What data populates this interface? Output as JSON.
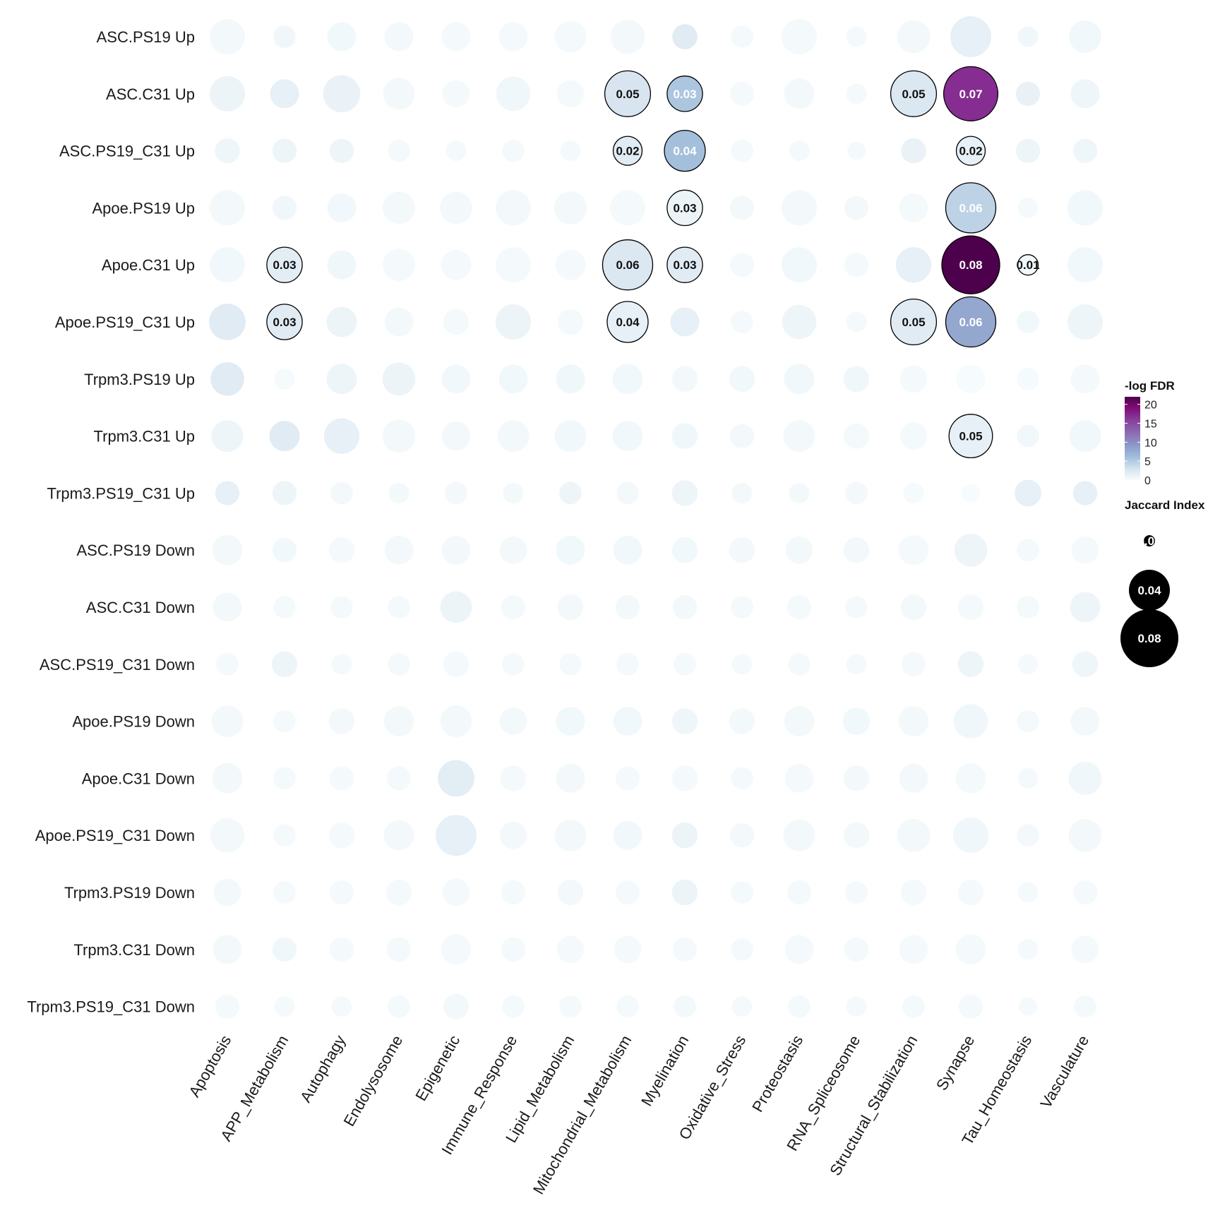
{
  "chart_data": {
    "type": "bubble-matrix",
    "rows": [
      "ASC.PS19 Up",
      "ASC.C31 Up",
      "ASC.PS19_C31 Up",
      "Apoe.PS19 Up",
      "Apoe.C31 Up",
      "Apoe.PS19_C31 Up",
      "Trpm3.PS19 Up",
      "Trpm3.C31 Up",
      "Trpm3.PS19_C31 Up",
      "ASC.PS19 Down",
      "ASC.C31 Down",
      "ASC.PS19_C31 Down",
      "Apoe.PS19 Down",
      "Apoe.C31 Down",
      "Apoe.PS19_C31 Down",
      "Trpm3.PS19 Down",
      "Trpm3.C31 Down",
      "Trpm3.PS19_C31 Down"
    ],
    "columns": [
      "Apoptosis",
      "APP_Metabolism",
      "Autophagy",
      "Endolysosome",
      "Epigenetic",
      "Immune_Response",
      "Lipid_Metabolism",
      "Mitochondrial_Metabolism",
      "Myelination",
      "Oxidative_Stress",
      "Proteostasis",
      "RNA_Spliceosome",
      "Structural_Stabilization",
      "Synapse",
      "Tau_Homeostasis",
      "Vasculature"
    ],
    "jaccard": [
      [
        0.03,
        0.012,
        0.02,
        0.02,
        0.02,
        0.02,
        0.024,
        0.028,
        0.015,
        0.012,
        0.03,
        0.01,
        0.026,
        0.04,
        0.01,
        0.025
      ],
      [
        0.03,
        0.02,
        0.033,
        0.024,
        0.018,
        0.028,
        0.018,
        0.05,
        0.03,
        0.014,
        0.022,
        0.01,
        0.05,
        0.07,
        0.014,
        0.02
      ],
      [
        0.015,
        0.014,
        0.014,
        0.012,
        0.01,
        0.012,
        0.01,
        0.02,
        0.04,
        0.012,
        0.01,
        0.008,
        0.015,
        0.02,
        0.014,
        0.014
      ],
      [
        0.03,
        0.014,
        0.02,
        0.025,
        0.025,
        0.03,
        0.026,
        0.03,
        0.03,
        0.014,
        0.03,
        0.014,
        0.02,
        0.06,
        0.01,
        0.03
      ],
      [
        0.03,
        0.03,
        0.02,
        0.025,
        0.022,
        0.03,
        0.022,
        0.06,
        0.03,
        0.014,
        0.03,
        0.014,
        0.03,
        0.08,
        0.01,
        0.03
      ],
      [
        0.032,
        0.03,
        0.022,
        0.02,
        0.016,
        0.03,
        0.016,
        0.04,
        0.02,
        0.012,
        0.028,
        0.01,
        0.05,
        0.06,
        0.012,
        0.03
      ],
      [
        0.027,
        0.01,
        0.022,
        0.026,
        0.02,
        0.02,
        0.02,
        0.022,
        0.016,
        0.016,
        0.022,
        0.016,
        0.018,
        0.02,
        0.012,
        0.02
      ],
      [
        0.024,
        0.022,
        0.03,
        0.026,
        0.02,
        0.024,
        0.024,
        0.022,
        0.016,
        0.014,
        0.024,
        0.016,
        0.018,
        0.045,
        0.012,
        0.024
      ],
      [
        0.014,
        0.014,
        0.012,
        0.01,
        0.012,
        0.01,
        0.012,
        0.012,
        0.016,
        0.01,
        0.01,
        0.012,
        0.01,
        0.008,
        0.017,
        0.014
      ],
      [
        0.022,
        0.014,
        0.016,
        0.02,
        0.02,
        0.018,
        0.02,
        0.02,
        0.016,
        0.016,
        0.018,
        0.016,
        0.022,
        0.026,
        0.012,
        0.018
      ],
      [
        0.02,
        0.012,
        0.012,
        0.012,
        0.024,
        0.014,
        0.016,
        0.014,
        0.014,
        0.012,
        0.014,
        0.012,
        0.016,
        0.016,
        0.012,
        0.022
      ],
      [
        0.012,
        0.016,
        0.01,
        0.012,
        0.016,
        0.012,
        0.012,
        0.012,
        0.012,
        0.01,
        0.012,
        0.01,
        0.014,
        0.016,
        0.01,
        0.016
      ],
      [
        0.024,
        0.012,
        0.016,
        0.022,
        0.024,
        0.018,
        0.02,
        0.02,
        0.016,
        0.016,
        0.022,
        0.018,
        0.022,
        0.028,
        0.012,
        0.02
      ],
      [
        0.022,
        0.012,
        0.014,
        0.014,
        0.032,
        0.016,
        0.02,
        0.014,
        0.016,
        0.012,
        0.02,
        0.016,
        0.02,
        0.022,
        0.01,
        0.026
      ],
      [
        0.028,
        0.012,
        0.016,
        0.022,
        0.04,
        0.018,
        0.024,
        0.02,
        0.016,
        0.014,
        0.024,
        0.016,
        0.026,
        0.03,
        0.012,
        0.026
      ],
      [
        0.018,
        0.012,
        0.014,
        0.016,
        0.018,
        0.014,
        0.016,
        0.014,
        0.016,
        0.012,
        0.014,
        0.012,
        0.016,
        0.016,
        0.01,
        0.014
      ],
      [
        0.02,
        0.014,
        0.014,
        0.014,
        0.022,
        0.014,
        0.018,
        0.018,
        0.014,
        0.012,
        0.02,
        0.014,
        0.02,
        0.022,
        0.01,
        0.018
      ],
      [
        0.014,
        0.01,
        0.01,
        0.012,
        0.016,
        0.012,
        0.012,
        0.012,
        0.012,
        0.01,
        0.012,
        0.01,
        0.012,
        0.014,
        0.008,
        0.012
      ]
    ],
    "neglogFDR": [
      [
        0.4,
        0.6,
        0.5,
        0.4,
        0.3,
        0.3,
        0.3,
        0.4,
        2.0,
        0.3,
        0.3,
        0.3,
        0.4,
        1.5,
        0.6,
        0.5
      ],
      [
        1.0,
        1.5,
        1.2,
        0.4,
        0.3,
        0.6,
        0.3,
        2.8,
        5.5,
        0.3,
        0.4,
        0.3,
        2.5,
        17.0,
        1.3,
        0.7
      ],
      [
        0.7,
        0.9,
        0.8,
        0.3,
        0.3,
        0.3,
        0.3,
        2.0,
        6.0,
        0.3,
        0.3,
        0.3,
        1.2,
        1.5,
        0.9,
        0.7
      ],
      [
        0.4,
        0.6,
        0.5,
        0.4,
        0.4,
        0.4,
        0.4,
        0.3,
        1.0,
        0.4,
        0.4,
        0.4,
        0.3,
        4.5,
        0.3,
        0.5
      ],
      [
        0.5,
        1.8,
        0.6,
        0.3,
        0.3,
        0.3,
        0.3,
        2.5,
        2.0,
        0.3,
        0.5,
        0.3,
        1.5,
        22.0,
        0.5,
        0.5
      ],
      [
        2.0,
        2.0,
        1.0,
        0.4,
        0.3,
        1.0,
        0.3,
        1.5,
        1.5,
        0.3,
        0.8,
        0.3,
        2.0,
        8.0,
        0.5,
        0.8
      ],
      [
        2.0,
        0.2,
        0.8,
        1.0,
        0.5,
        0.5,
        0.6,
        0.5,
        0.4,
        0.5,
        0.5,
        0.6,
        0.3,
        0.1,
        0.2,
        0.3
      ],
      [
        0.8,
        2.0,
        1.5,
        0.4,
        0.4,
        0.4,
        0.5,
        0.5,
        0.6,
        0.4,
        0.4,
        0.3,
        0.3,
        1.5,
        0.5,
        0.5
      ],
      [
        1.5,
        0.8,
        0.4,
        0.4,
        0.4,
        0.4,
        0.8,
        0.4,
        0.9,
        0.4,
        0.4,
        0.4,
        0.2,
        0.1,
        1.5,
        1.5
      ],
      [
        0.4,
        0.5,
        0.3,
        0.4,
        0.4,
        0.4,
        0.5,
        0.5,
        0.5,
        0.4,
        0.4,
        0.4,
        0.3,
        0.8,
        0.3,
        0.3
      ],
      [
        0.4,
        0.3,
        0.3,
        0.3,
        1.0,
        0.3,
        0.4,
        0.4,
        0.4,
        0.3,
        0.3,
        0.3,
        0.4,
        0.3,
        0.3,
        0.8
      ],
      [
        0.3,
        0.8,
        0.3,
        0.3,
        0.3,
        0.3,
        0.3,
        0.3,
        0.3,
        0.3,
        0.3,
        0.3,
        0.3,
        0.8,
        0.3,
        0.7
      ],
      [
        0.4,
        0.3,
        0.4,
        0.4,
        0.4,
        0.4,
        0.5,
        0.5,
        0.7,
        0.4,
        0.4,
        0.5,
        0.4,
        0.6,
        0.3,
        0.4
      ],
      [
        0.4,
        0.3,
        0.3,
        0.3,
        1.8,
        0.3,
        0.4,
        0.3,
        0.3,
        0.3,
        0.3,
        0.4,
        0.4,
        0.3,
        0.3,
        0.6
      ],
      [
        0.4,
        0.3,
        0.3,
        0.4,
        1.5,
        0.4,
        0.4,
        0.5,
        1.0,
        0.4,
        0.4,
        0.4,
        0.4,
        0.6,
        0.4,
        0.4
      ],
      [
        0.4,
        0.3,
        0.3,
        0.3,
        0.3,
        0.3,
        0.4,
        0.3,
        1.0,
        0.3,
        0.3,
        0.3,
        0.3,
        0.3,
        0.3,
        0.3
      ],
      [
        0.4,
        0.6,
        0.3,
        0.3,
        0.3,
        0.3,
        0.3,
        0.3,
        0.3,
        0.3,
        0.3,
        0.3,
        0.3,
        0.3,
        0.3,
        0.3
      ],
      [
        0.3,
        0.3,
        0.3,
        0.3,
        0.4,
        0.3,
        0.3,
        0.3,
        0.4,
        0.3,
        0.3,
        0.3,
        0.3,
        0.3,
        0.3,
        0.3
      ]
    ],
    "labeled_cells": [
      {
        "row": 1,
        "col": 7,
        "label": "0.05"
      },
      {
        "row": 1,
        "col": 8,
        "label": "0.03"
      },
      {
        "row": 1,
        "col": 12,
        "label": "0.05"
      },
      {
        "row": 1,
        "col": 13,
        "label": "0.07"
      },
      {
        "row": 2,
        "col": 7,
        "label": "0.02"
      },
      {
        "row": 2,
        "col": 8,
        "label": "0.04"
      },
      {
        "row": 2,
        "col": 13,
        "label": "0.02"
      },
      {
        "row": 3,
        "col": 8,
        "label": "0.03"
      },
      {
        "row": 3,
        "col": 13,
        "label": "0.06"
      },
      {
        "row": 4,
        "col": 1,
        "label": "0.03"
      },
      {
        "row": 4,
        "col": 7,
        "label": "0.06"
      },
      {
        "row": 4,
        "col": 8,
        "label": "0.03"
      },
      {
        "row": 4,
        "col": 13,
        "label": "0.08"
      },
      {
        "row": 4,
        "col": 14,
        "label": "0.01"
      },
      {
        "row": 5,
        "col": 1,
        "label": "0.03"
      },
      {
        "row": 5,
        "col": 7,
        "label": "0.04"
      },
      {
        "row": 5,
        "col": 12,
        "label": "0.05"
      },
      {
        "row": 5,
        "col": 13,
        "label": "0.06"
      },
      {
        "row": 7,
        "col": 13,
        "label": "0.05"
      }
    ],
    "color_legend": {
      "title": "-log FDR",
      "ticks": [
        "20",
        "15",
        "10",
        "5",
        "0"
      ],
      "range": [
        0,
        22
      ],
      "colors": [
        "#f7fcfd",
        "#d4e2ee",
        "#9ebcda",
        "#8c96c6",
        "#8c6bb1",
        "#88419d",
        "#810f7c",
        "#4d004b"
      ]
    },
    "size_legend": {
      "title": "Jaccard Index",
      "entries": [
        "0.00",
        "0.04",
        "0.08"
      ]
    }
  }
}
